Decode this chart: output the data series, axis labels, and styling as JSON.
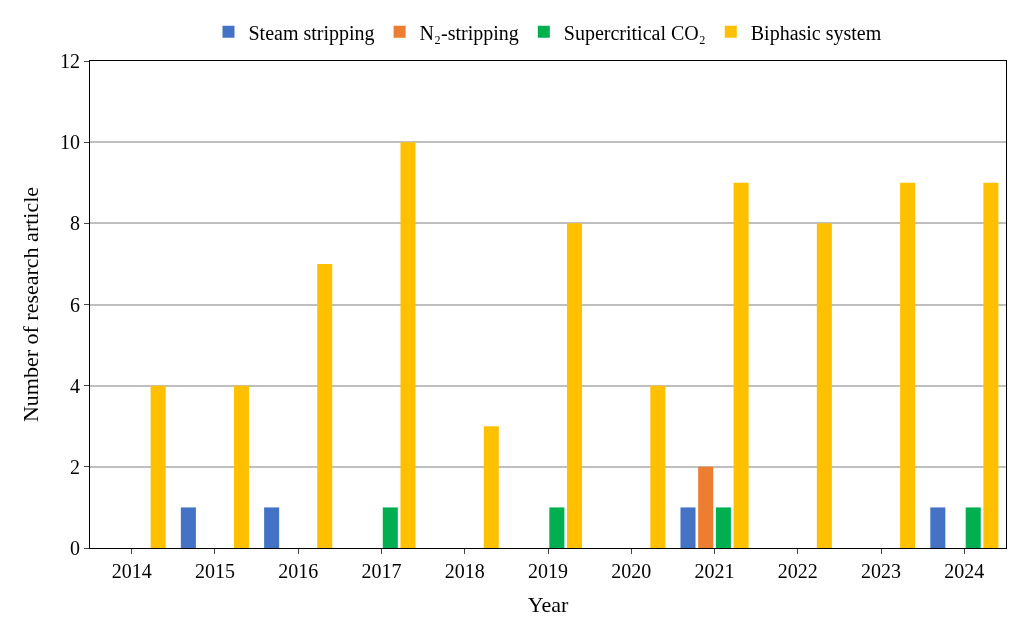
{
  "chart_data": {
    "type": "bar",
    "xlabel": "Year",
    "ylabel": "Number of research article",
    "categories": [
      "2014",
      "2015",
      "2016",
      "2017",
      "2018",
      "2019",
      "2020",
      "2021",
      "2022",
      "2023",
      "2024"
    ],
    "series": [
      {
        "name": "Steam stripping",
        "color": "#4472c4",
        "values": [
          0,
          1,
          1,
          0,
          0,
          0,
          0,
          1,
          0,
          0,
          1
        ]
      },
      {
        "name": "N₂-stripping",
        "color": "#ed7d31",
        "values": [
          0,
          0,
          0,
          0,
          0,
          0,
          0,
          2,
          0,
          0,
          0
        ]
      },
      {
        "name": "Supercritical CO₂",
        "color": "#00b050",
        "values": [
          0,
          0,
          0,
          1,
          0,
          1,
          0,
          1,
          0,
          0,
          1
        ]
      },
      {
        "name": "Biphasic system",
        "color": "#ffc000",
        "values": [
          4,
          4,
          7,
          10,
          3,
          8,
          4,
          9,
          8,
          9,
          9
        ]
      }
    ],
    "ylim": [
      0,
      12
    ],
    "yticks": [
      0,
      2,
      4,
      6,
      8,
      10,
      12
    ],
    "grid": "y",
    "legend": "top"
  }
}
